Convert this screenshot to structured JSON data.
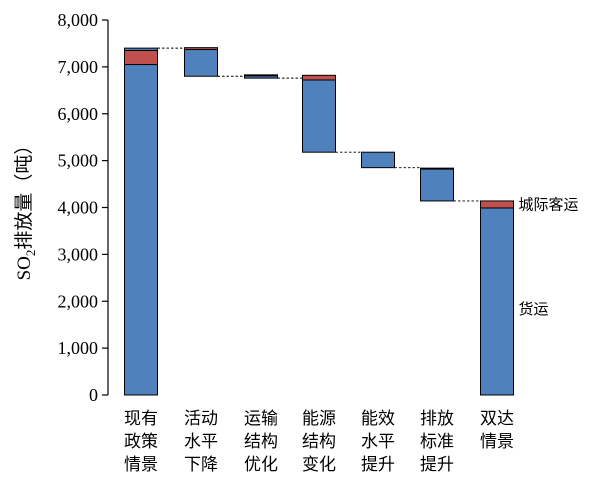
{
  "chart_data": {
    "type": "bar",
    "subtype": "waterfall-stacked",
    "ylabel": {
      "prefix": "SO",
      "subscript": "2",
      "suffix": "排放量（吨）"
    },
    "ylim": [
      0,
      8000
    ],
    "yticks": [
      0,
      1000,
      2000,
      3000,
      4000,
      5000,
      6000,
      7000,
      8000
    ],
    "ytick_labels": [
      "0",
      "1,000",
      "2,000",
      "3,000",
      "4,000",
      "5,000",
      "6,000",
      "7,000",
      "8,000"
    ],
    "categories": [
      [
        "现有",
        "政策",
        "情景"
      ],
      [
        "活动",
        "水平",
        "下降"
      ],
      [
        "运输",
        "结构",
        "优化"
      ],
      [
        "能源",
        "结构",
        "变化"
      ],
      [
        "能效",
        "水平",
        "提升"
      ],
      [
        "排放",
        "标准",
        "提升"
      ],
      [
        "双达",
        "情景"
      ]
    ],
    "series_names": {
      "freight": "货运",
      "intercity_passenger": "城际客运"
    },
    "bars": [
      {
        "kind": "total",
        "base": 0,
        "freight": 7050,
        "passenger": 300,
        "top_extra": 50
      },
      {
        "kind": "decrease",
        "base": 6800,
        "freight": 570,
        "passenger": 40,
        "top_extra": 0
      },
      {
        "kind": "decrease",
        "base": 6760,
        "freight": 50,
        "passenger": 20,
        "top_extra": 0
      },
      {
        "kind": "decrease",
        "base": 5180,
        "freight": 1540,
        "passenger": 100,
        "top_extra": 0
      },
      {
        "kind": "decrease",
        "base": 4850,
        "freight": 330,
        "passenger": 0,
        "top_extra": 0
      },
      {
        "kind": "decrease",
        "base": 4140,
        "freight": 680,
        "passenger": 20,
        "top_extra": 0
      },
      {
        "kind": "total",
        "base": 0,
        "freight": 3990,
        "passenger": 150,
        "top_extra": 0
      }
    ],
    "colors": {
      "freight": "#4f81bd",
      "passenger": "#c0504d",
      "border": "#000000",
      "connector": "#000000"
    },
    "grid": false,
    "legend": "labels beside final bar"
  }
}
